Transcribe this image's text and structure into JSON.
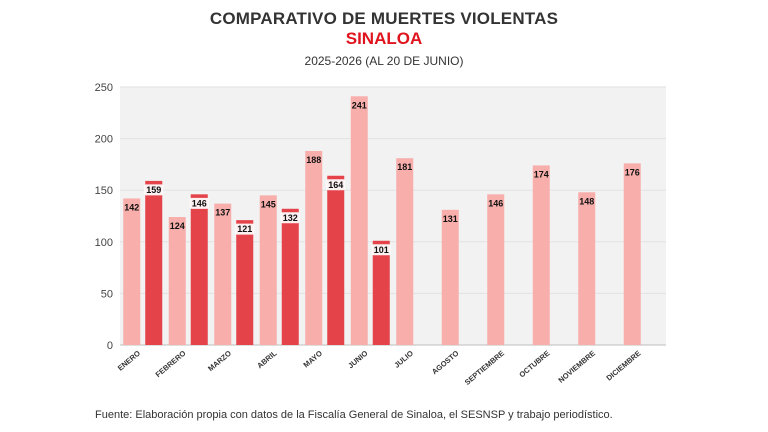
{
  "title": "COMPARATIVO DE MUERTES VIOLENTAS",
  "subtitle": "SINALOA",
  "period": "2025-2026 (AL 20 DE JUNIO)",
  "source": "Fuente: Elaboración propia con datos de la Fiscalía General de Sinaloa, el SESNSP y trabajo periodístico.",
  "colors": {
    "accent": "#e0141e",
    "series_2025": "#f8aeab",
    "series_2026": "#e4434a",
    "label_box_2026": "#ffffff"
  },
  "chart_data": {
    "type": "bar",
    "categories": [
      "ENERO",
      "FEBRERO",
      "MARZO",
      "ABRIL",
      "MAYO",
      "JUNIO",
      "JULIO",
      "AGOSTO",
      "SEPTIEMBRE",
      "OCTUBRE",
      "NOVIEMBRE",
      "DICIEMBRE"
    ],
    "series": [
      {
        "values": [
          142,
          124,
          137,
          145,
          188,
          241,
          181,
          131,
          146,
          174,
          148,
          176
        ]
      },
      {
        "values": [
          159,
          146,
          121,
          132,
          164,
          101,
          null,
          null,
          null,
          null,
          null,
          null
        ]
      }
    ],
    "ylim": [
      0,
      250
    ],
    "yticks": [
      0,
      50,
      100,
      150,
      200,
      250
    ],
    "grid": true
  }
}
